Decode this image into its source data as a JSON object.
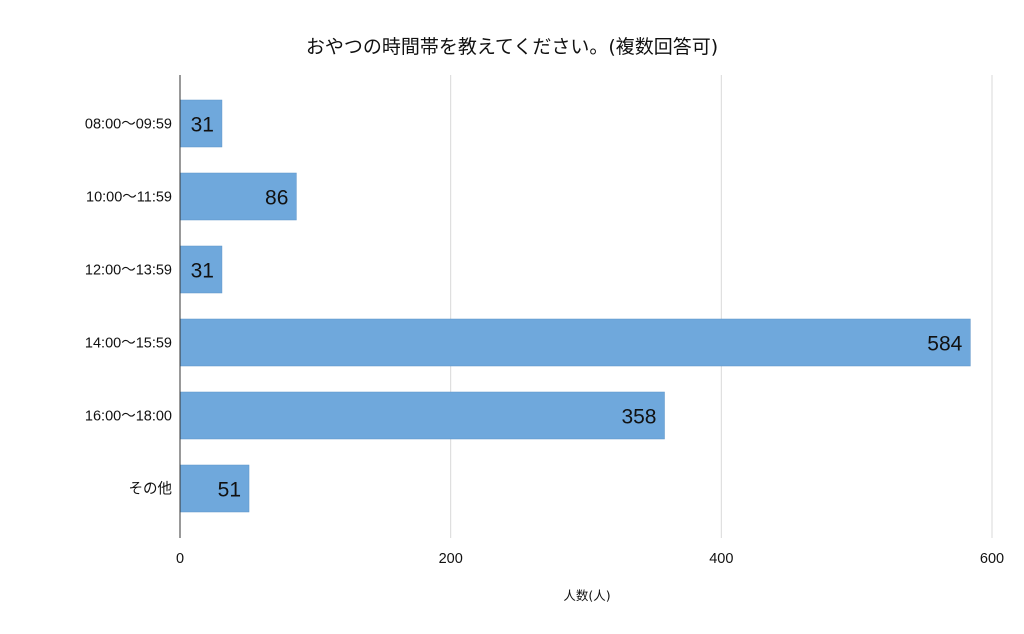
{
  "chart_data": {
    "type": "bar",
    "orientation": "horizontal",
    "title": "おやつの時間帯を教えてください。(複数回答可)",
    "xlabel": "人数(人)",
    "ylabel": "",
    "categories": [
      "08:00〜09:59",
      "10:00〜11:59",
      "12:00〜13:59",
      "14:00〜15:59",
      "16:00〜18:00",
      "その他"
    ],
    "values": [
      31,
      86,
      31,
      584,
      358,
      51
    ],
    "data_labels": [
      "31",
      "86",
      "31",
      "584",
      "358",
      "51"
    ],
    "xlim": [
      0,
      600
    ],
    "xticks": [
      0,
      200,
      400,
      600
    ],
    "xtick_labels": [
      "0",
      "200",
      "400",
      "600"
    ],
    "grid": "vertical",
    "legend": "none",
    "colors": {
      "bar": "#6fa8dc",
      "bar_edge": "#5b93c7",
      "grid": "#d9d9d9",
      "axis": "#333333",
      "text": "#111111"
    }
  }
}
